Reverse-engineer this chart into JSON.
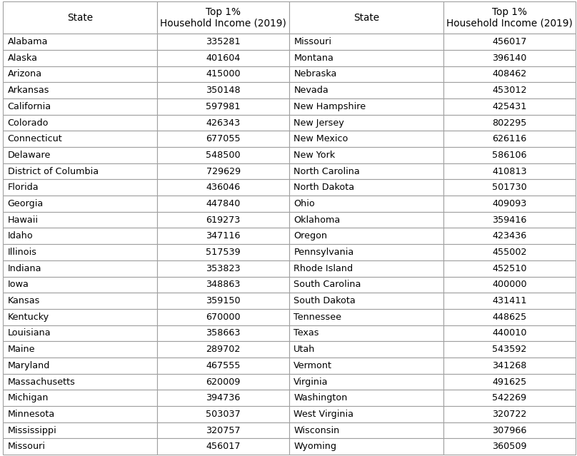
{
  "left_states": [
    "Alabama",
    "Alaska",
    "Arizona",
    "Arkansas",
    "California",
    "Colorado",
    "Connecticut",
    "Delaware",
    "District of Columbia",
    "Florida",
    "Georgia",
    "Hawaii",
    "Idaho",
    "Illinois",
    "Indiana",
    "Iowa",
    "Kansas",
    "Kentucky",
    "Louisiana",
    "Maine",
    "Maryland",
    "Massachusetts",
    "Michigan",
    "Minnesota",
    "Mississippi",
    "Missouri"
  ],
  "left_values": [
    "335281",
    "401604",
    "415000",
    "350148",
    "597981",
    "426343",
    "677055",
    "548500",
    "729629",
    "436046",
    "447840",
    "619273",
    "347116",
    "517539",
    "353823",
    "348863",
    "359150",
    "670000",
    "358663",
    "289702",
    "467555",
    "620009",
    "394736",
    "503037",
    "320757",
    "456017"
  ],
  "right_states": [
    "Missouri",
    "Montana",
    "Nebraska",
    "Nevada",
    "New Hampshire",
    "New Jersey",
    "New Mexico",
    "New York",
    "North Carolina",
    "North Dakota",
    "Ohio",
    "Oklahoma",
    "Oregon",
    "Pennsylvania",
    "Rhode Island",
    "South Carolina",
    "South Dakota",
    "Tennessee",
    "Texas",
    "Utah",
    "Vermont",
    "Virginia",
    "Washington",
    "West Virginia",
    "Wisconsin",
    "Wyoming"
  ],
  "right_values": [
    "456017",
    "396140",
    "408462",
    "453012",
    "425431",
    "802295",
    "626116",
    "586106",
    "410813",
    "501730",
    "409093",
    "359416",
    "423436",
    "455002",
    "452510",
    "400000",
    "431411",
    "448625",
    "440010",
    "543592",
    "341268",
    "491625",
    "542269",
    "320722",
    "307966",
    "360509"
  ],
  "header_col1": "State",
  "header_col2": "Top 1%\nHousehold Income (2019)",
  "header_col3": "State",
  "header_col4": "Top 1%\nHousehold Income (2019)",
  "border_color": "#a0a0a0",
  "text_color": "#000000",
  "bg_color": "#ffffff",
  "font_size": 9.2,
  "header_font_size": 9.8,
  "fig_width": 8.08,
  "fig_height": 6.39,
  "dpi": 100
}
